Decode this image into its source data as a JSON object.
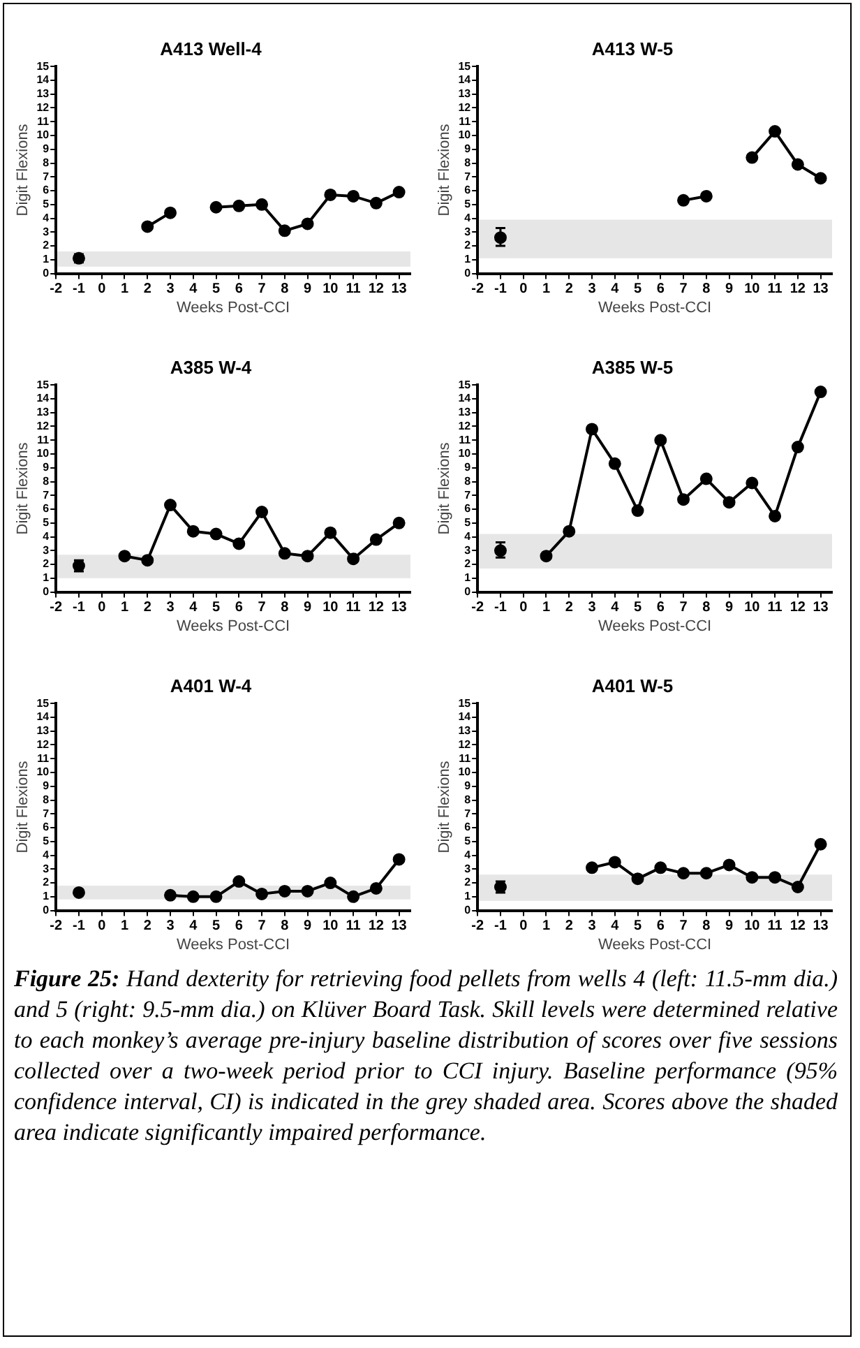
{
  "chart_data": [
    {
      "type": "line",
      "title": "A413 Well-4",
      "xlabel": "Weeks Post-CCI",
      "ylabel": "Digit Flexions",
      "xlim": [
        -2,
        13.5
      ],
      "ylim": [
        0,
        15
      ],
      "xticks": [
        -2,
        -1,
        0,
        1,
        2,
        3,
        4,
        5,
        6,
        7,
        8,
        9,
        10,
        11,
        12,
        13
      ],
      "yticks": [
        0,
        1,
        2,
        3,
        4,
        5,
        6,
        7,
        8,
        9,
        10,
        11,
        12,
        13,
        14,
        15
      ],
      "grid": false,
      "legend": false,
      "marker": "circle",
      "bands": [
        {
          "axis": "y",
          "from": 0.5,
          "to": 1.6,
          "color": "#e6e6e6"
        }
      ],
      "series": [
        {
          "type": "scatter",
          "color": "#000000",
          "x": [
            -1
          ],
          "values": [
            1.1
          ],
          "errors": [
            [
              0.8,
              1.4
            ]
          ]
        },
        {
          "type": "line",
          "color": "#000000",
          "x": [
            2,
            3,
            4,
            5,
            6,
            7,
            8,
            9,
            10,
            11,
            12,
            13
          ],
          "values": [
            3.4,
            4.4,
            null,
            4.8,
            4.9,
            5.0,
            3.1,
            3.6,
            5.7,
            5.6,
            5.1,
            5.9
          ]
        }
      ]
    },
    {
      "type": "line",
      "title": "A413 W-5",
      "xlabel": "Weeks Post-CCI",
      "ylabel": "Digit Flexions",
      "xlim": [
        -2,
        13.5
      ],
      "ylim": [
        0,
        15
      ],
      "xticks": [
        -2,
        -1,
        0,
        1,
        2,
        3,
        4,
        5,
        6,
        7,
        8,
        9,
        10,
        11,
        12,
        13
      ],
      "yticks": [
        0,
        1,
        2,
        3,
        4,
        5,
        6,
        7,
        8,
        9,
        10,
        11,
        12,
        13,
        14,
        15
      ],
      "grid": false,
      "legend": false,
      "marker": "circle",
      "bands": [
        {
          "axis": "y",
          "from": 1.1,
          "to": 3.9,
          "color": "#e6e6e6"
        }
      ],
      "series": [
        {
          "type": "scatter",
          "color": "#000000",
          "x": [
            -1
          ],
          "values": [
            2.6
          ],
          "errors": [
            [
              2.0,
              3.3
            ]
          ]
        },
        {
          "type": "line",
          "color": "#000000",
          "x": [
            7,
            8,
            9,
            10,
            11,
            12,
            13
          ],
          "values": [
            5.3,
            5.6,
            null,
            8.4,
            10.3,
            7.9,
            6.9
          ]
        }
      ]
    },
    {
      "type": "line",
      "title": "A385 W-4",
      "xlabel": "Weeks Post-CCI",
      "ylabel": "Digit Flexions",
      "xlim": [
        -2,
        13.5
      ],
      "ylim": [
        0,
        15
      ],
      "xticks": [
        -2,
        -1,
        0,
        1,
        2,
        3,
        4,
        5,
        6,
        7,
        8,
        9,
        10,
        11,
        12,
        13
      ],
      "yticks": [
        0,
        1,
        2,
        3,
        4,
        5,
        6,
        7,
        8,
        9,
        10,
        11,
        12,
        13,
        14,
        15
      ],
      "grid": false,
      "legend": false,
      "marker": "circle",
      "bands": [
        {
          "axis": "y",
          "from": 1.0,
          "to": 2.7,
          "color": "#e6e6e6"
        }
      ],
      "series": [
        {
          "type": "scatter",
          "color": "#000000",
          "x": [
            -1
          ],
          "values": [
            1.9
          ],
          "errors": [
            [
              1.5,
              2.3
            ]
          ]
        },
        {
          "type": "line",
          "color": "#000000",
          "x": [
            1,
            2,
            3,
            4,
            5,
            6,
            7,
            8,
            9,
            10,
            11,
            12,
            13
          ],
          "values": [
            2.6,
            2.3,
            6.3,
            4.4,
            4.2,
            3.5,
            5.8,
            2.8,
            2.6,
            4.3,
            2.4,
            3.8,
            5.0
          ]
        }
      ]
    },
    {
      "type": "line",
      "title": "A385 W-5",
      "xlabel": "Weeks Post-CCI",
      "ylabel": "Digit Flexions",
      "xlim": [
        -2,
        13.5
      ],
      "ylim": [
        0,
        15
      ],
      "xticks": [
        -2,
        -1,
        0,
        1,
        2,
        3,
        4,
        5,
        6,
        7,
        8,
        9,
        10,
        11,
        12,
        13
      ],
      "yticks": [
        0,
        1,
        2,
        3,
        4,
        5,
        6,
        7,
        8,
        9,
        10,
        11,
        12,
        13,
        14,
        15
      ],
      "grid": false,
      "legend": false,
      "marker": "circle",
      "bands": [
        {
          "axis": "y",
          "from": 1.7,
          "to": 4.2,
          "color": "#e6e6e6"
        }
      ],
      "series": [
        {
          "type": "scatter",
          "color": "#000000",
          "x": [
            -1
          ],
          "values": [
            3.0
          ],
          "errors": [
            [
              2.5,
              3.6
            ]
          ]
        },
        {
          "type": "line",
          "color": "#000000",
          "x": [
            1,
            2,
            3,
            4,
            5,
            6,
            7,
            8,
            9,
            10,
            11,
            12,
            13
          ],
          "values": [
            2.6,
            4.4,
            11.8,
            9.3,
            5.9,
            11.0,
            6.7,
            8.2,
            6.5,
            7.9,
            5.5,
            10.5,
            14.5
          ]
        }
      ]
    },
    {
      "type": "line",
      "title": "A401 W-4",
      "xlabel": "Weeks Post-CCI",
      "ylabel": "Digit Flexions",
      "xlim": [
        -2,
        13.5
      ],
      "ylim": [
        0,
        15
      ],
      "xticks": [
        -2,
        -1,
        0,
        1,
        2,
        3,
        4,
        5,
        6,
        7,
        8,
        9,
        10,
        11,
        12,
        13
      ],
      "yticks": [
        0,
        1,
        2,
        3,
        4,
        5,
        6,
        7,
        8,
        9,
        10,
        11,
        12,
        13,
        14,
        15
      ],
      "grid": false,
      "legend": false,
      "marker": "circle",
      "bands": [
        {
          "axis": "y",
          "from": 0.8,
          "to": 1.8,
          "color": "#e6e6e6"
        }
      ],
      "series": [
        {
          "type": "scatter",
          "color": "#000000",
          "x": [
            -1
          ],
          "values": [
            1.3
          ]
        },
        {
          "type": "line",
          "color": "#000000",
          "x": [
            3,
            4,
            5,
            6,
            7,
            8,
            9,
            10,
            11,
            12,
            13
          ],
          "values": [
            1.1,
            1.0,
            1.0,
            2.1,
            1.2,
            1.4,
            1.4,
            2.0,
            1.0,
            1.6,
            3.7
          ]
        }
      ]
    },
    {
      "type": "line",
      "title": "A401 W-5",
      "xlabel": "Weeks Post-CCI",
      "ylabel": "Digit Flexions",
      "xlim": [
        -2,
        13.5
      ],
      "ylim": [
        0,
        15
      ],
      "xticks": [
        -2,
        -1,
        0,
        1,
        2,
        3,
        4,
        5,
        6,
        7,
        8,
        9,
        10,
        11,
        12,
        13
      ],
      "yticks": [
        0,
        1,
        2,
        3,
        4,
        5,
        6,
        7,
        8,
        9,
        10,
        11,
        12,
        13,
        14,
        15
      ],
      "grid": false,
      "legend": false,
      "marker": "circle",
      "bands": [
        {
          "axis": "y",
          "from": 0.7,
          "to": 2.6,
          "color": "#e6e6e6"
        }
      ],
      "series": [
        {
          "type": "scatter",
          "color": "#000000",
          "x": [
            -1
          ],
          "values": [
            1.7
          ],
          "errors": [
            [
              1.3,
              2.1
            ]
          ]
        },
        {
          "type": "line",
          "color": "#000000",
          "x": [
            3,
            4,
            5,
            6,
            7,
            8,
            9,
            10,
            11,
            12,
            13
          ],
          "values": [
            3.1,
            3.5,
            2.3,
            3.1,
            2.7,
            2.7,
            3.3,
            2.4,
            2.4,
            1.7,
            4.8
          ]
        }
      ],
      "annotations": [
        "Figure 25: Hand dexterity for retrieving food pellets from wells 4 (left: 11.5-mm dia.) and 5 (right: 9.5-mm dia.) on Klüver Board Task. Skill levels were determined relative to each monkey’s average pre-injury baseline distribution of scores over five sessions collected over a two-week period prior to CCI injury. Baseline performance (95% confidence interval, CI) is indicated in the grey shaded area. Scores above the shaded area indicate significantly impaired performance."
      ]
    }
  ]
}
